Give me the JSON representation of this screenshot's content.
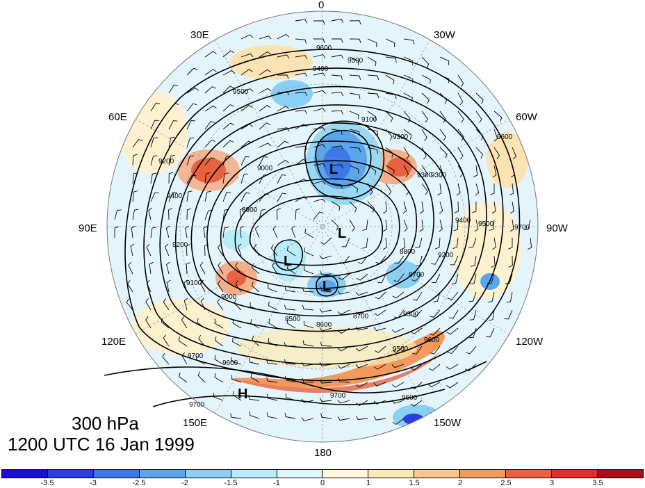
{
  "map": {
    "level": "300 hPa",
    "valid_time": "1200 UTC 16 Jan 1999",
    "longitude_labels": {
      "lon_0": "0",
      "lon_30w": "30W",
      "lon_60w": "60W",
      "lon_90w": "90W",
      "lon_120w": "120W",
      "lon_150w": "150W",
      "lon_180": "180",
      "lon_150e": "150E",
      "lon_120e": "120E",
      "lon_90e": "90E",
      "lon_60e": "60E",
      "lon_30e": "30E"
    },
    "centers": [
      {
        "label": "L"
      },
      {
        "label": "L"
      },
      {
        "label": "L"
      },
      {
        "label": "L"
      },
      {
        "label": "H"
      }
    ],
    "contour_labels": [
      "9600",
      "9500",
      "9400",
      "9500",
      "9300",
      "9200",
      "9100",
      "9000",
      "8900",
      "9400",
      "9200",
      "9100",
      "9000",
      "8800",
      "8500",
      "8600",
      "8700",
      "9300",
      "9500",
      "9600",
      "9700",
      "9600",
      "9700",
      "9700",
      "9600",
      "9300",
      "9400",
      "9500",
      "9600",
      "9700",
      "8700",
      "9200",
      "9300"
    ]
  },
  "colorbar": {
    "colors": [
      "#1a0fd1",
      "#2a3ee0",
      "#3d78e8",
      "#5aa6ee",
      "#8bd0f4",
      "#b9ecfb",
      "#e0f6fb",
      "#fffadf",
      "#fdeab4",
      "#f9c78c",
      "#f2995e",
      "#e9623f",
      "#d9302c",
      "#a50f15"
    ],
    "tick_labels": [
      "-3.5",
      "-3",
      "-2.5",
      "-2",
      "-1.5",
      "-1",
      "0",
      "1",
      "1.5",
      "2",
      "2.5",
      "3",
      "3.5"
    ]
  },
  "colors": {
    "background": "#ffffff",
    "contour_line": "#000000",
    "ocean_pale": "#e2f5fb"
  }
}
